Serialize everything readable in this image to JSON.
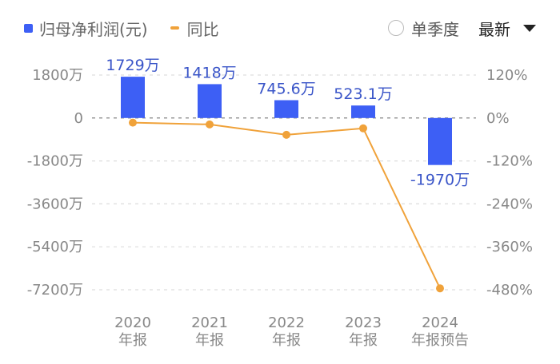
{
  "legend": {
    "bar_label": "归母净利润(元)",
    "line_label": "同比"
  },
  "controls": {
    "single_quarter_label": "单季度",
    "single_quarter_checked": false,
    "sort_label": "最新",
    "dropdown_icon": "caret-down-icon"
  },
  "colors": {
    "bar": "#3d5ff5",
    "line": "#f0a23a",
    "bar_label": "#3a55c8",
    "axis_text": "#888888"
  },
  "chart_data": {
    "type": "bar+line",
    "categories": [
      "2020\n年报",
      "2021\n年报",
      "2022\n年报",
      "2023\n年报",
      "2024\n年报预告"
    ],
    "category_lines": [
      [
        "2020",
        "年报"
      ],
      [
        "2021",
        "年报"
      ],
      [
        "2022",
        "年报"
      ],
      [
        "2023",
        "年报"
      ],
      [
        "2024",
        "年报预告"
      ]
    ],
    "series": [
      {
        "name": "归母净利润(元)",
        "type": "bar",
        "axis": "left",
        "unit": "万",
        "values": [
          1729,
          1418,
          745.6,
          523.1,
          -1970
        ],
        "labels": [
          "1729万",
          "1418万",
          "745.6万",
          "523.1万",
          "-1970万"
        ]
      },
      {
        "name": "同比",
        "type": "line",
        "axis": "right",
        "unit": "%",
        "values": [
          -13,
          -18,
          -47,
          -29,
          -476
        ]
      }
    ],
    "left_axis": {
      "ticks": [
        1800,
        0,
        -1800,
        -3600,
        -5400,
        -7200
      ],
      "tick_labels": [
        "1800万",
        "0",
        "-1800万",
        "-3600万",
        "-5400万",
        "-7200万"
      ],
      "range": [
        -7200,
        1800
      ]
    },
    "right_axis": {
      "ticks": [
        120,
        0,
        -120,
        -240,
        -360,
        -480
      ],
      "tick_labels": [
        "120%",
        "0%",
        "-120%",
        "-240%",
        "-360%",
        "-480%"
      ],
      "range": [
        -480,
        120
      ]
    },
    "grid": true,
    "legend_position": "top-left"
  }
}
